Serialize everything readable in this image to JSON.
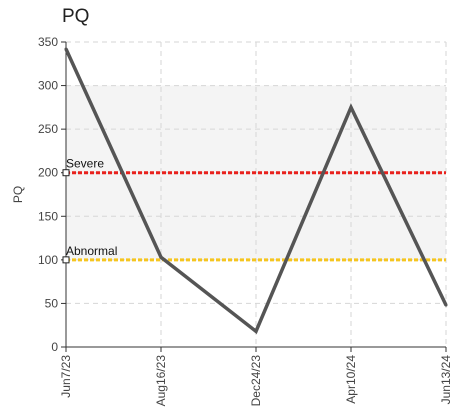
{
  "chart_data": {
    "type": "line",
    "title": "PQ",
    "xlabel": "",
    "ylabel": "PQ",
    "ylim": [
      0,
      350
    ],
    "yticks": [
      0,
      50,
      100,
      150,
      200,
      250,
      300,
      350
    ],
    "x": [
      "Jun7/23",
      "Aug16/23",
      "Dec24/23",
      "Apr10/24",
      "Jun13/24"
    ],
    "series": [
      {
        "values": [
          342,
          103,
          18,
          275,
          48
        ],
        "color": "#555555"
      }
    ],
    "thresholds": [
      {
        "label": "Severe",
        "value": 200,
        "color": "#e8211d"
      },
      {
        "label": "Abnormal",
        "value": 100,
        "color": "#f5c51f"
      }
    ],
    "bands": [
      {
        "from": 100,
        "to": 300,
        "color": "#f4f4f4"
      }
    ],
    "grid": true
  }
}
